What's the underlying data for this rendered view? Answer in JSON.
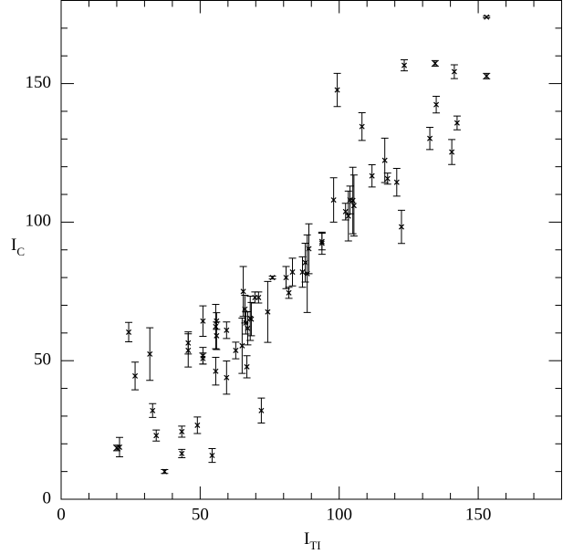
{
  "chart_data": {
    "type": "scatter",
    "x_label": "I",
    "x_label_sub": "TI",
    "y_label": "I",
    "y_label_sub": "C",
    "color": "#000000",
    "xlim": [
      0,
      180
    ],
    "ylim": [
      0,
      180
    ],
    "xticks": [
      0,
      50,
      100,
      150
    ],
    "yticks": [
      0,
      50,
      100,
      150
    ],
    "xminorticks": [
      10,
      20,
      30,
      40,
      60,
      70,
      80,
      90,
      110,
      120,
      130,
      140,
      160,
      170
    ],
    "yminorticks": [
      10,
      20,
      30,
      40,
      60,
      70,
      80,
      90,
      110,
      120,
      130,
      140,
      160,
      170
    ],
    "x": [
      20,
      21,
      24.3,
      26.6,
      31.9,
      32.9,
      34.2,
      37.2,
      43.4,
      43.4,
      45.7,
      45.7,
      49,
      51,
      51,
      51,
      54.3,
      55.6,
      55.6,
      55.9,
      55.9,
      59.5,
      59.5,
      62.8,
      65.1,
      65.5,
      66.1,
      66.4,
      66.8,
      67.1,
      68,
      68.4,
      69.7,
      71,
      72,
      74.3,
      76,
      80.9,
      81.9,
      83.2,
      86.8,
      87.8,
      88.5,
      89.1,
      93.8,
      93.8,
      98,
      99.3,
      102.3,
      103.3,
      103.9,
      104.9,
      105.3,
      108.2,
      111.8,
      116.4,
      117.4,
      120.7,
      122.4,
      123.4,
      132.6,
      134.5,
      134.9,
      140.5,
      141.4,
      142.4,
      153,
      153
    ],
    "values": [
      18.5,
      18.8,
      60.3,
      44.5,
      52.4,
      32,
      23,
      10,
      24.4,
      16.5,
      56.4,
      53.7,
      26.7,
      64.3,
      51.8,
      50.8,
      15.8,
      46.2,
      62.3,
      64.3,
      59,
      43.9,
      61,
      53.7,
      55.4,
      75,
      68.6,
      63.6,
      47.8,
      61.7,
      65.3,
      65,
      72.8,
      72.8,
      32,
      67.6,
      80,
      80,
      74.5,
      82,
      82,
      85.4,
      81.4,
      90.4,
      93,
      92.4,
      108,
      147.7,
      103.8,
      102.2,
      108,
      107.8,
      106,
      134.5,
      116.7,
      122.3,
      115.7,
      114.4,
      98.3,
      156.6,
      130.2,
      157.3,
      142.4,
      125.3,
      154.3,
      135.8,
      174,
      152.7
    ],
    "errors": [
      1,
      3.5,
      3.5,
      5,
      9.5,
      2.5,
      2,
      0.7,
      2,
      1.5,
      4,
      6,
      3,
      5.5,
      3,
      2,
      2.5,
      5,
      8,
      3,
      5,
      6,
      3,
      3,
      10,
      9,
      5,
      4,
      4,
      6,
      8,
      6,
      2,
      2,
      4.5,
      11,
      0.5,
      4,
      2,
      5,
      5.5,
      7,
      14,
      9,
      3,
      4,
      8,
      6,
      3,
      9,
      5,
      12,
      11,
      5,
      4,
      8,
      2,
      5,
      6,
      2,
      4,
      1,
      3,
      4.5,
      2.5,
      2.5,
      0.3,
      1
    ]
  }
}
